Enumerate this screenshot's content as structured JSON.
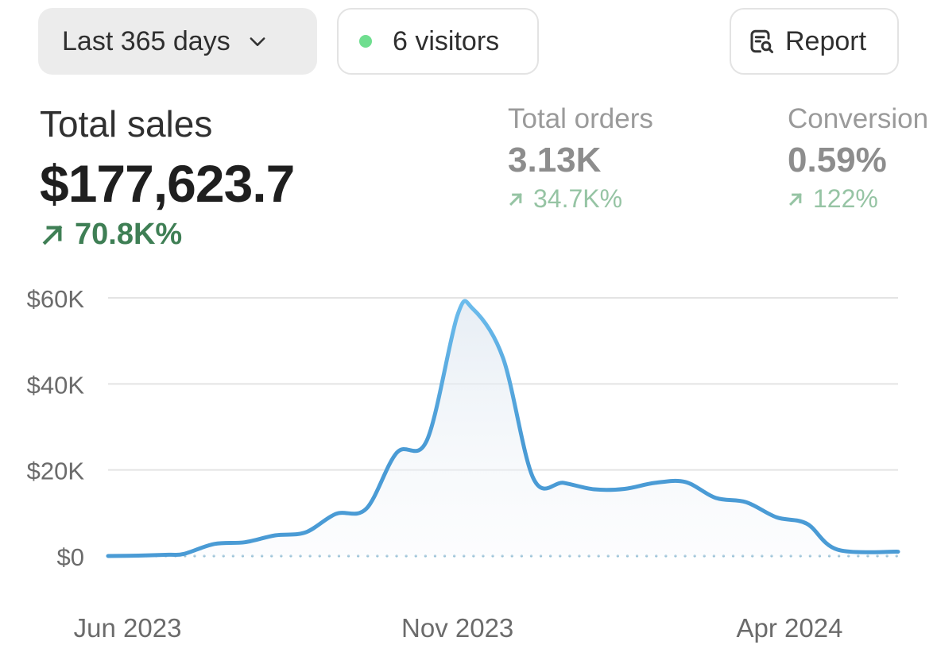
{
  "toolbar": {
    "range_label": "Last 365 days",
    "visitors_label": "6 visitors",
    "report_label": "Report",
    "live_dot_color": "#6fde8f"
  },
  "metrics": {
    "total_sales": {
      "label": "Total sales",
      "value": "$177,623.7",
      "delta": "70.8K%"
    },
    "total_orders": {
      "label": "Total orders",
      "value": "3.13K",
      "delta": "34.7K%"
    },
    "conversion": {
      "label": "Conversion",
      "value": "0.59%",
      "delta": "122%"
    }
  },
  "icons": {
    "range": "chevron-down-icon",
    "visitors": "status-dot-icon",
    "report": "report-search-icon",
    "delta": "arrow-up-right-icon"
  },
  "colors": {
    "line": "#4a9bd5",
    "line_peak": "#6cbcec",
    "positive": "#3f7f55",
    "positive_muted": "#96c4a4",
    "grid": "#e4e4e4"
  },
  "chart_data": {
    "type": "area",
    "title": "",
    "xlabel": "",
    "ylabel": "",
    "ylim": [
      0,
      60000
    ],
    "y_ticks": [
      {
        "value": 0,
        "label": "$0"
      },
      {
        "value": 20000,
        "label": "$20K"
      },
      {
        "value": 40000,
        "label": "$40K"
      },
      {
        "value": 60000,
        "label": "$60K"
      }
    ],
    "x_ticks": [
      {
        "x": "2023-06-06",
        "label": "Jun 2023"
      },
      {
        "x": "2023-11-05",
        "label": "Nov 2023"
      },
      {
        "x": "2024-04-06",
        "label": "Apr 2024"
      }
    ],
    "xlim": [
      "2023-05-28",
      "2024-05-26"
    ],
    "grid": true,
    "baseline": "dotted",
    "series": [
      {
        "points": [
          [
            "2023-05-28",
            0
          ],
          [
            "2023-06-11",
            100
          ],
          [
            "2023-06-25",
            300
          ],
          [
            "2023-07-02",
            500
          ],
          [
            "2023-07-16",
            2800
          ],
          [
            "2023-07-30",
            3200
          ],
          [
            "2023-08-13",
            4800
          ],
          [
            "2023-08-27",
            5500
          ],
          [
            "2023-09-10",
            9800
          ],
          [
            "2023-09-24",
            11000
          ],
          [
            "2023-10-08",
            24000
          ],
          [
            "2023-10-22",
            27000
          ],
          [
            "2023-11-05",
            56000
          ],
          [
            "2023-11-12",
            57500
          ],
          [
            "2023-11-26",
            46000
          ],
          [
            "2023-12-10",
            18000
          ],
          [
            "2023-12-24",
            17000
          ],
          [
            "2024-01-07",
            15500
          ],
          [
            "2024-01-21",
            15600
          ],
          [
            "2024-02-04",
            17000
          ],
          [
            "2024-02-18",
            17200
          ],
          [
            "2024-03-03",
            13500
          ],
          [
            "2024-03-17",
            12500
          ],
          [
            "2024-03-31",
            9000
          ],
          [
            "2024-04-14",
            7500
          ],
          [
            "2024-04-28",
            1500
          ],
          [
            "2024-05-26",
            1000
          ]
        ]
      }
    ]
  }
}
